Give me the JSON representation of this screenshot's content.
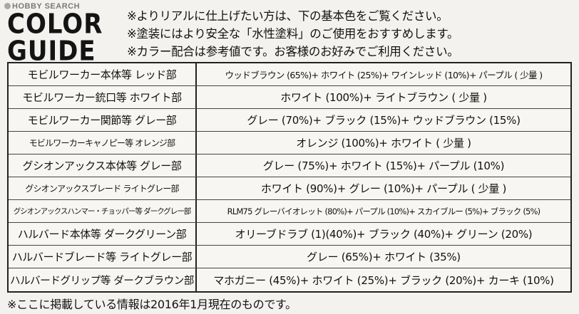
{
  "watermark": "HOBBY SEARCH",
  "title": {
    "line1": "COLOR",
    "line2": "GUIDE"
  },
  "notes": [
    "※よりリアルに仕上げたい方は、下の基本色をご覧ください。",
    "※塗装にはより安全な「水性塗料」のご使用をおすすめします。",
    "※カラー配合は参考値です。お客様のお好みでご利用ください。"
  ],
  "rows": [
    {
      "part": "モビルワーカー本体等 レッド部",
      "mix": "ウッドブラウン (65%)+ ホワイト (25%)+ ワインレッド (10%)+ パープル ( 少量 )"
    },
    {
      "part": "モビルワーカー銃口等 ホワイト部",
      "mix": "ホワイト (100%)+ ライトブラウン ( 少量 )"
    },
    {
      "part": "モビルワーカー関節等 グレー部",
      "mix": "グレー (70%)+ ブラック (15%)+ ウッドブラウン (15%)"
    },
    {
      "part": "モビルワーカーキャノピー等 オレンジ部",
      "mix": "オレンジ (100%)+ ホワイト ( 少量 )"
    },
    {
      "part": "グシオンアックス本体等 グレー部",
      "mix": "グレー (75%)+ ホワイト (15%)+ パープル (10%)"
    },
    {
      "part": "グシオンアックスブレード ライトグレー部",
      "mix": "ホワイト (90%)+ グレー (10%)+ パープル ( 少量 )"
    },
    {
      "part": "グシオンアックスハンマー・チョッパー等 ダークグレー部",
      "mix": "RLM75 グレーバイオレット (80%)+ パープル (10%)+ スカイブルー (5%)+ ブラック (5%)"
    },
    {
      "part": "ハルバード本体等 ダークグリーン部",
      "mix": "オリーブドラブ (1)(40%)+ ブラック (40%)+ グリーン (20%)"
    },
    {
      "part": "ハルバードブレード等 ライトグレー部",
      "mix": "グレー (65%)+ ホワイト (35%)"
    },
    {
      "part": "ハルバードグリップ等 ダークブラウン部",
      "mix": "マホガニー (45%)+ ホワイト (25%)+ ブラック (20%)+ カーキ (10%)"
    }
  ],
  "footnote": "※ここに掲載している情報は2016年1月現在のものです。"
}
